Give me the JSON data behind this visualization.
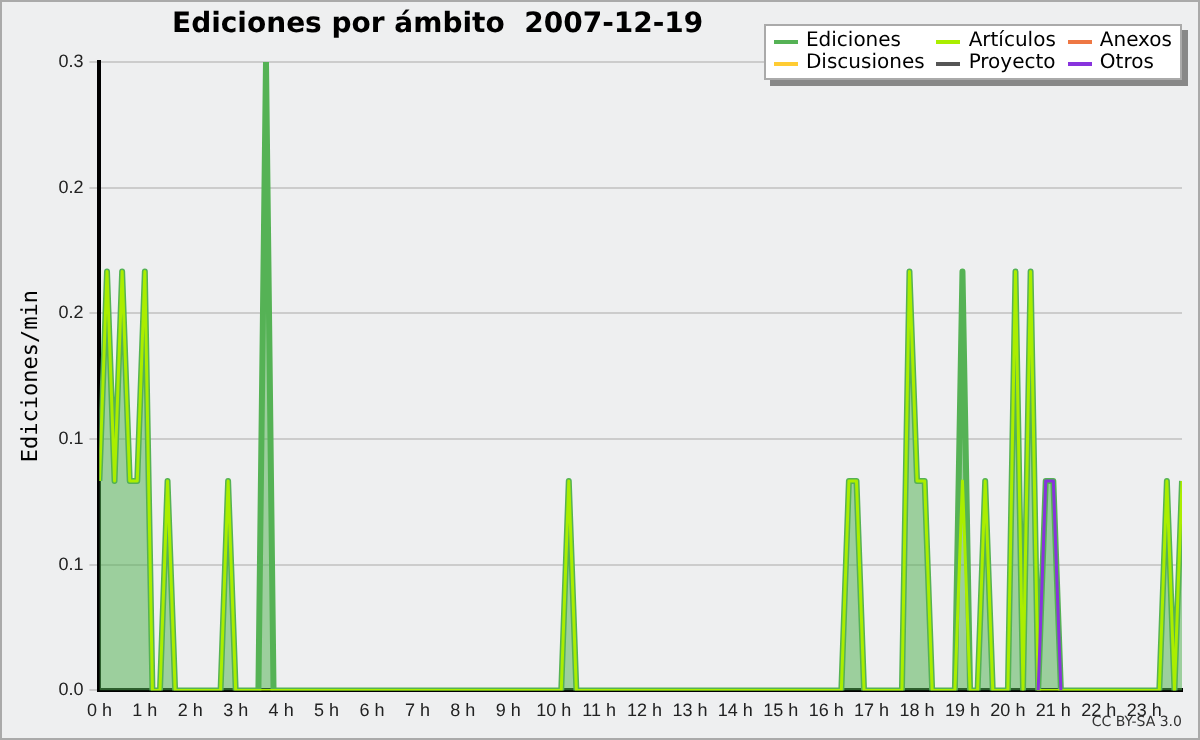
{
  "chart_data": {
    "type": "area",
    "title": "Ediciones por ámbito  2007-12-19",
    "ylabel": "Ediciones/min",
    "annotations": [
      "CC BY-SA 3.0"
    ],
    "x": [
      0,
      0.167,
      0.333,
      0.5,
      0.667,
      0.833,
      1.0,
      1.167,
      1.333,
      1.5,
      1.667,
      2.667,
      2.833,
      3.0,
      3.5,
      3.667,
      3.833,
      10.167,
      10.333,
      10.5,
      16.333,
      16.5,
      16.667,
      16.833,
      17.667,
      17.833,
      18.0,
      18.167,
      18.333,
      18.833,
      19.0,
      19.167,
      19.333,
      19.5,
      19.667,
      20.0,
      20.167,
      20.333,
      20.5,
      20.667,
      20.833,
      21.0,
      21.167,
      23.333,
      23.5,
      23.667,
      23.833
    ],
    "series": [
      {
        "name": "Ediciones",
        "type": "area",
        "color": "#55b255",
        "values": [
          0.1,
          0.2,
          0.1,
          0.2,
          0.1,
          0.1,
          0.2,
          0,
          0,
          0.1,
          0,
          0,
          0.1,
          0,
          0,
          0.3,
          0,
          0,
          0.1,
          0,
          0,
          0.1,
          0.1,
          0,
          0,
          0.2,
          0.1,
          0.1,
          0,
          0,
          0.2,
          0,
          0,
          0.1,
          0,
          0,
          0.2,
          0,
          0.2,
          0,
          0.1,
          0.1,
          0,
          0,
          0.1,
          0,
          0.1
        ]
      },
      {
        "name": "Artículos",
        "type": "line",
        "color": "#aaee00",
        "values": [
          0.1,
          0.2,
          0.1,
          0.2,
          0.1,
          0.1,
          0.2,
          0,
          0,
          0.1,
          0,
          0,
          0.1,
          0,
          0,
          0,
          0,
          0,
          0.1,
          0,
          0,
          0.1,
          0.1,
          0,
          0,
          0.2,
          0.1,
          0.1,
          0,
          0,
          0.1,
          0,
          0,
          0.1,
          0,
          0,
          0.2,
          0,
          0.2,
          0,
          0,
          0,
          0,
          0,
          0.1,
          0,
          0.1
        ]
      },
      {
        "name": "Anexos",
        "type": "line",
        "color": "#ee7744",
        "values": [
          null,
          null,
          null,
          null,
          null,
          null,
          null,
          null,
          null,
          null,
          null,
          null,
          null,
          null,
          null,
          null,
          null,
          null,
          null,
          null,
          null,
          null,
          null,
          null,
          null,
          null,
          null,
          null,
          null,
          null,
          null,
          null,
          null,
          null,
          null,
          null,
          null,
          null,
          null,
          null,
          null,
          null,
          null,
          null,
          null,
          null,
          null
        ]
      },
      {
        "name": "Discusiones",
        "type": "line",
        "color": "#ffcc33",
        "values": [
          null,
          null,
          null,
          null,
          null,
          null,
          null,
          null,
          null,
          null,
          null,
          null,
          null,
          null,
          null,
          null,
          null,
          null,
          null,
          null,
          null,
          null,
          null,
          null,
          null,
          null,
          null,
          null,
          null,
          null,
          null,
          null,
          null,
          null,
          null,
          null,
          null,
          null,
          null,
          null,
          null,
          null,
          null,
          null,
          null,
          null,
          null
        ]
      },
      {
        "name": "Proyecto",
        "type": "line",
        "color": "#555555",
        "values": [
          null,
          null,
          null,
          null,
          null,
          null,
          null,
          null,
          null,
          null,
          null,
          null,
          null,
          null,
          null,
          null,
          null,
          null,
          null,
          null,
          null,
          null,
          null,
          null,
          null,
          null,
          null,
          null,
          null,
          null,
          null,
          null,
          null,
          null,
          null,
          null,
          null,
          null,
          null,
          null,
          null,
          null,
          null,
          null,
          null,
          null,
          null
        ]
      },
      {
        "name": "Otros",
        "type": "line",
        "color": "#8833dd",
        "values": [
          null,
          null,
          null,
          null,
          null,
          null,
          null,
          null,
          null,
          null,
          null,
          null,
          null,
          null,
          null,
          null,
          null,
          null,
          null,
          null,
          null,
          null,
          null,
          null,
          null,
          null,
          null,
          null,
          null,
          null,
          null,
          null,
          null,
          null,
          null,
          null,
          null,
          null,
          null,
          0,
          0.1,
          0.1,
          0,
          null,
          null,
          null,
          null
        ]
      }
    ],
    "xlim": [
      0,
      23.833
    ],
    "xticks": [
      {
        "value": 0,
        "label": "0 h"
      },
      {
        "value": 1,
        "label": "1 h"
      },
      {
        "value": 2,
        "label": "2 h"
      },
      {
        "value": 3,
        "label": "3 h"
      },
      {
        "value": 4,
        "label": "4 h"
      },
      {
        "value": 5,
        "label": "5 h"
      },
      {
        "value": 6,
        "label": "6 h"
      },
      {
        "value": 7,
        "label": "7 h"
      },
      {
        "value": 8,
        "label": "8 h"
      },
      {
        "value": 9,
        "label": "9 h"
      },
      {
        "value": 10,
        "label": "10 h"
      },
      {
        "value": 11,
        "label": "11 h"
      },
      {
        "value": 12,
        "label": "12 h"
      },
      {
        "value": 13,
        "label": "13 h"
      },
      {
        "value": 14,
        "label": "14 h"
      },
      {
        "value": 15,
        "label": "15 h"
      },
      {
        "value": 16,
        "label": "16 h"
      },
      {
        "value": 17,
        "label": "17 h"
      },
      {
        "value": 18,
        "label": "18 h"
      },
      {
        "value": 19,
        "label": "19 h"
      },
      {
        "value": 20,
        "label": "20 h"
      },
      {
        "value": 21,
        "label": "21 h"
      },
      {
        "value": 22,
        "label": "22 h"
      },
      {
        "value": 23,
        "label": "23 h"
      }
    ],
    "ylim": [
      0,
      0.3
    ],
    "yticks": [
      {
        "value": 0,
        "label": "0.0"
      },
      {
        "value": 0.06,
        "label": "0.1"
      },
      {
        "value": 0.12,
        "label": "0.1"
      },
      {
        "value": 0.18,
        "label": "0.2"
      },
      {
        "value": 0.24,
        "label": "0.2"
      },
      {
        "value": 0.3,
        "label": "0.3"
      }
    ],
    "grid": "y",
    "legend": "top right",
    "marker": "none",
    "line_style": "solid"
  }
}
